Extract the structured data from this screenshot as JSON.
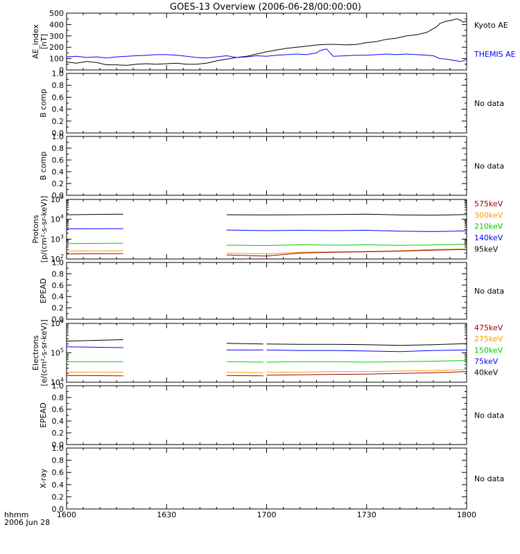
{
  "title": "GOES-13 Overview (2006-06-28/00:00:00)",
  "footer": {
    "line1": "hhmm",
    "line2": "2006 Jun 28"
  },
  "x_axis": {
    "range": [
      960,
      1080
    ],
    "ticks": [
      960,
      990,
      1020,
      1050,
      1080
    ],
    "tick_labels": [
      "1600",
      "1630",
      "1700",
      "1730",
      "1800"
    ]
  },
  "chart_data": [
    {
      "type": "line",
      "panel": "ae",
      "ylabel": "AE_index\n[nT]",
      "ylim": [
        0,
        500
      ],
      "yticks": [
        0,
        100,
        200,
        300,
        400,
        500
      ],
      "ytick_labels": [
        "0",
        "100",
        "200",
        "300",
        "400",
        "500"
      ],
      "series": [
        {
          "name": "Kyoto AE",
          "color": "#000000",
          "x": [
            960,
            963,
            966,
            969,
            972,
            975,
            978,
            981,
            984,
            987,
            990,
            993,
            996,
            999,
            1002,
            1005,
            1008,
            1011,
            1014,
            1017,
            1020,
            1023,
            1026,
            1029,
            1032,
            1035,
            1038,
            1041,
            1044,
            1047,
            1050,
            1053,
            1056,
            1059,
            1062,
            1065,
            1068,
            1071,
            1072,
            1074,
            1076,
            1077,
            1078,
            1079,
            1080
          ],
          "y": [
            70,
            60,
            75,
            65,
            45,
            45,
            40,
            50,
            55,
            50,
            55,
            60,
            50,
            50,
            60,
            80,
            95,
            110,
            120,
            140,
            160,
            175,
            190,
            200,
            210,
            220,
            225,
            225,
            220,
            225,
            240,
            250,
            270,
            280,
            300,
            310,
            330,
            380,
            410,
            430,
            440,
            450,
            440,
            420,
            430
          ]
        },
        {
          "name": "THEMIS AE",
          "color": "#0000ff",
          "x": [
            960,
            963,
            966,
            969,
            972,
            975,
            978,
            981,
            984,
            987,
            990,
            993,
            996,
            999,
            1002,
            1005,
            1008,
            1011,
            1014,
            1017,
            1020,
            1023,
            1026,
            1029,
            1032,
            1035,
            1036,
            1038,
            1040,
            1044,
            1047,
            1050,
            1053,
            1056,
            1059,
            1062,
            1065,
            1068,
            1070,
            1072,
            1074,
            1076,
            1077,
            1078,
            1079,
            1080
          ],
          "y": [
            115,
            120,
            110,
            115,
            105,
            115,
            120,
            125,
            130,
            135,
            135,
            130,
            120,
            110,
            105,
            115,
            125,
            110,
            115,
            125,
            120,
            130,
            135,
            140,
            135,
            150,
            170,
            185,
            120,
            125,
            130,
            130,
            135,
            140,
            135,
            140,
            135,
            130,
            125,
            100,
            95,
            85,
            80,
            75,
            80,
            95
          ]
        }
      ]
    },
    {
      "type": "line",
      "panel": "b1",
      "ylabel": "B comp",
      "ylim": [
        0,
        1
      ],
      "yticks": [
        0,
        0.2,
        0.4,
        0.6,
        0.8,
        1.0
      ],
      "ytick_labels": [
        "0.0",
        "0.2",
        "0.4",
        "0.6",
        "0.8",
        "1.0"
      ],
      "series": [],
      "note": "No data"
    },
    {
      "type": "line",
      "panel": "b2",
      "ylabel": "B comp",
      "ylim": [
        0,
        1
      ],
      "yticks": [
        0,
        0.2,
        0.4,
        0.6,
        0.8,
        1.0
      ],
      "ytick_labels": [
        "0.0",
        "0.2",
        "0.4",
        "0.6",
        "0.8",
        "1.0"
      ],
      "series": [],
      "note": "No data"
    },
    {
      "type": "line",
      "panel": "protons",
      "log": true,
      "ylabel": "Protons\n[p/(cm²-s-sr-keV)]",
      "ylim_log10": [
        2,
        5
      ],
      "yticks_log10": [
        2,
        3,
        4,
        5
      ],
      "series": [
        {
          "name": "95keV",
          "color": "#000000",
          "segments": [
            {
              "x": [
                960,
                977
              ],
              "y": [
                17000,
                18000
              ]
            },
            {
              "x": [
                1008,
                1020,
                1030,
                1040,
                1050,
                1060,
                1070,
                1080
              ],
              "y": [
                17000,
                16500,
                17000,
                17500,
                18000,
                16500,
                16000,
                17500
              ]
            }
          ]
        },
        {
          "name": "140keV",
          "color": "#0000ff",
          "segments": [
            {
              "x": [
                960,
                977
              ],
              "y": [
                3300,
                3400
              ]
            },
            {
              "x": [
                1008,
                1020,
                1030,
                1040,
                1050,
                1060,
                1070,
                1080
              ],
              "y": [
                2900,
                2700,
                2800,
                2700,
                2800,
                2500,
                2400,
                2600
              ]
            }
          ]
        },
        {
          "name": "210keV",
          "color": "#00cc00",
          "segments": [
            {
              "x": [
                960,
                977
              ],
              "y": [
                600,
                620
              ]
            },
            {
              "x": [
                1008,
                1020,
                1030,
                1040,
                1050,
                1060,
                1070,
                1080
              ],
              "y": [
                500,
                480,
                520,
                500,
                520,
                490,
                510,
                560
              ]
            }
          ]
        },
        {
          "name": "300keV",
          "color": "#ff9900",
          "segments": [
            {
              "x": [
                960,
                977
              ],
              "y": [
                250,
                260
              ]
            },
            {
              "x": [
                1008,
                1020,
                1030,
                1040,
                1050,
                1060,
                1070,
                1080
              ],
              "y": [
                200,
                180,
                220,
                230,
                240,
                260,
                300,
                320
              ]
            }
          ]
        },
        {
          "name": "575keV",
          "color": "#990000",
          "segments": [
            {
              "x": [
                960,
                977
              ],
              "y": [
                180,
                185
              ]
            },
            {
              "x": [
                1008,
                1014,
                1020,
                1030,
                1040,
                1050,
                1060,
                1070,
                1080
              ],
              "y": [
                160,
                150,
                140,
                200,
                220,
                230,
                250,
                280,
                300
              ]
            }
          ]
        }
      ]
    },
    {
      "type": "line",
      "panel": "epead1",
      "ylabel": "EPEAD",
      "ylim": [
        0,
        1
      ],
      "yticks": [
        0,
        0.2,
        0.4,
        0.6,
        0.8,
        1.0
      ],
      "ytick_labels": [
        "0.0",
        "0.2",
        "0.4",
        "0.6",
        "0.8",
        "1.0"
      ],
      "series": [],
      "note": "No data"
    },
    {
      "type": "line",
      "panel": "electrons",
      "log": true,
      "ylabel": "Electrons\n[e/(cm²-s-sr-keV)]",
      "ylim_log10": [
        4,
        6
      ],
      "yticks_log10": [
        4,
        5,
        6
      ],
      "series": [
        {
          "name": "40keV",
          "color": "#000000",
          "segments": [
            {
              "x": [
                960,
                977
              ],
              "y": [
                250000,
                280000
              ]
            },
            {
              "x": [
                1008,
                1019
              ],
              "y": [
                210000,
                200000
              ]
            },
            {
              "x": [
                1020,
                1030,
                1040,
                1050,
                1060,
                1070,
                1080
              ],
              "y": [
                200000,
                195000,
                195000,
                190000,
                180000,
                190000,
                205000
              ]
            }
          ]
        },
        {
          "name": "75keV",
          "color": "#0000ff",
          "segments": [
            {
              "x": [
                960,
                977
              ],
              "y": [
                160000,
                150000
              ]
            },
            {
              "x": [
                1008,
                1019
              ],
              "y": [
                125000,
                125000
              ]
            },
            {
              "x": [
                1020,
                1030,
                1040,
                1050,
                1060,
                1070,
                1080
              ],
              "y": [
                125000,
                120000,
                120000,
                115000,
                110000,
                120000,
                125000
              ]
            }
          ]
        },
        {
          "name": "150keV",
          "color": "#00cc00",
          "segments": [
            {
              "x": [
                960,
                977
              ],
              "y": [
                50000,
                50000
              ]
            },
            {
              "x": [
                1008,
                1019
              ],
              "y": [
                50000,
                48000
              ]
            },
            {
              "x": [
                1020,
                1030,
                1040,
                1050,
                1060,
                1070,
                1080
              ],
              "y": [
                48000,
                50000,
                50000,
                48000,
                50000,
                52000,
                55000
              ]
            }
          ]
        },
        {
          "name": "275keV",
          "color": "#ff9900",
          "segments": [
            {
              "x": [
                960,
                977
              ],
              "y": [
                22000,
                22000
              ]
            },
            {
              "x": [
                1008,
                1019
              ],
              "y": [
                22000,
                21000
              ]
            },
            {
              "x": [
                1020,
                1030,
                1040,
                1050,
                1060,
                1070,
                1080
              ],
              "y": [
                22000,
                22000,
                23000,
                23000,
                24000,
                25000,
                27000
              ]
            }
          ]
        },
        {
          "name": "475keV",
          "color": "#990000",
          "segments": [
            {
              "x": [
                960,
                977
              ],
              "y": [
                17000,
                16500
              ]
            },
            {
              "x": [
                1008,
                1019
              ],
              "y": [
                17000,
                16500
              ]
            },
            {
              "x": [
                1020,
                1030,
                1040,
                1050,
                1060,
                1070,
                1080
              ],
              "y": [
                17500,
                18000,
                18500,
                19000,
                20000,
                21000,
                23000
              ]
            }
          ]
        }
      ]
    },
    {
      "type": "line",
      "panel": "epead2",
      "ylabel": "EPEAD",
      "ylim": [
        0,
        1
      ],
      "yticks": [
        0,
        0.2,
        0.4,
        0.6,
        0.8,
        1.0
      ],
      "ytick_labels": [
        "0.0",
        "0.2",
        "0.4",
        "0.6",
        "0.8",
        "1.0"
      ],
      "series": [],
      "note": "No data"
    },
    {
      "type": "line",
      "panel": "xray",
      "ylabel": "X-ray",
      "ylim": [
        0,
        1
      ],
      "yticks": [
        0,
        0.2,
        0.4,
        0.6,
        0.8,
        1.0
      ],
      "ytick_labels": [
        "0.0",
        "0.2",
        "0.4",
        "0.6",
        "0.8",
        "1.0"
      ],
      "series": [],
      "note": "No data"
    }
  ]
}
